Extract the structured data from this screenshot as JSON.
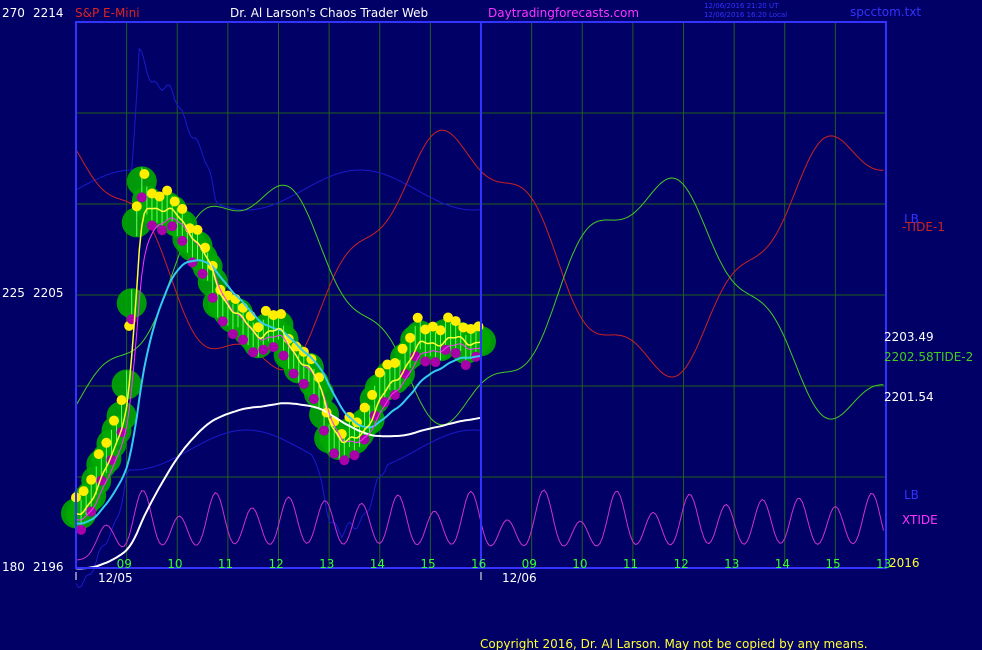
{
  "header": {
    "symbol": "S&P E-Mini",
    "title": "Dr. Al Larson's Chaos Trader Web",
    "site": "Daytradingforecasts.com",
    "file": "spcctom.txt",
    "stamp1": "12/06/2016 21:20 UT",
    "stamp2": "12/06/2016 16:20 Local"
  },
  "footer": {
    "copyright": "Copyright 2016, Dr. Al Larson. May not be copied by any means."
  },
  "chart_data": {
    "type": "line",
    "left_scale_1": [
      "270",
      "225",
      "180"
    ],
    "left_scale_2": [
      "2214",
      "2205",
      "2196"
    ],
    "price_range": [
      2196,
      2214
    ],
    "x_ticks": [
      "09",
      "10",
      "11",
      "12",
      "13",
      "14",
      "15",
      "16",
      "09",
      "10",
      "11",
      "12",
      "13",
      "14",
      "15",
      "13"
    ],
    "date_labels": [
      "12/05",
      "12/06"
    ],
    "right_labels": {
      "lb_top": "LB",
      "tide1": "-TIDE-1",
      "price_a": "2203.49",
      "tide2": "2202.58TIDE-2",
      "price_b": "2201.54",
      "lb_bottom": "LB",
      "xtide": "XTIDE",
      "year": "2016"
    },
    "colors": {
      "background": "#000066",
      "frame": "#3333ff",
      "grid": "#1f5f1f",
      "tide1": "#cc2222",
      "tide2": "#44cc22",
      "bands": "#1a1acc",
      "xtide": "#cc33cc",
      "ema_fast": "#ffff33",
      "ema_cyan": "#33ccee",
      "ema_slow": "#ffffff",
      "candles": "#00aa00",
      "pivot_high": "#ffee00",
      "pivot_low": "#aa00aa",
      "green_text": "#33ff33",
      "magenta_text": "#ff33ff",
      "label_text": "#ffffff",
      "dark_red_text": "#cc2222"
    },
    "price_series": {
      "name": "",
      "x": [
        0,
        0.25,
        0.5,
        0.75,
        1,
        1.25,
        1.5,
        1.75,
        2,
        2.25,
        2.5,
        2.75,
        3,
        3.25,
        3.5,
        3.75,
        4,
        4.25,
        4.5,
        4.75,
        5,
        5.25,
        5.5,
        5.75,
        6,
        6.25,
        6.5,
        6.75,
        7,
        7.25,
        7.5,
        7.75,
        8
      ],
      "close": [
        2197.8,
        2198.4,
        2199.1,
        2200.3,
        2202.0,
        2208.6,
        2208.0,
        2207.8,
        2207.4,
        2207.0,
        2206.2,
        2205.0,
        2204.6,
        2204.0,
        2203.6,
        2203.9,
        2203.7,
        2203.1,
        2202.6,
        2201.9,
        2200.6,
        2199.9,
        2200.3,
        2201.0,
        2201.7,
        2202.3,
        2202.9,
        2203.4,
        2203.5,
        2203.5,
        2203.5,
        2203.5,
        2203.5
      ]
    },
    "markers_high_count": 62,
    "markers_low_count": 44
  }
}
